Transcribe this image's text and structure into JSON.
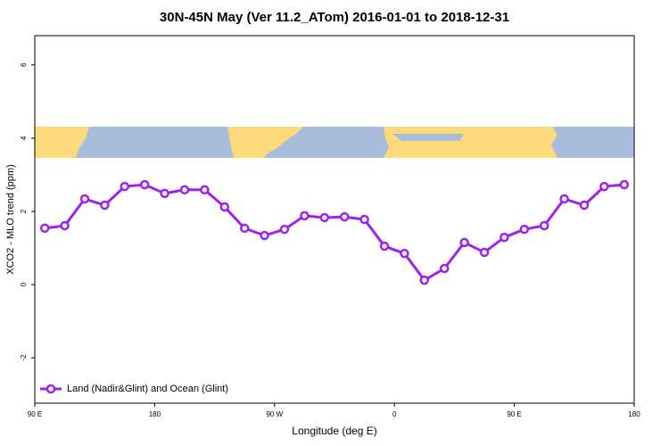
{
  "chart_data": {
    "type": "line",
    "title": "30N-45N May (Ver 11.2_ATom)   2016-01-01 to 2018-12-31",
    "x_label": "Longitude (deg E)",
    "y_label": "XCO2 - MLO trend (ppm)",
    "x": [
      97.5,
      112.5,
      127.5,
      142.5,
      157.5,
      172.5,
      187.5,
      202.5,
      217.5,
      232.5,
      247.5,
      262.5,
      277.5,
      292.5,
      307.5,
      322.5,
      337.5,
      352.5,
      367.5,
      382.5,
      397.5,
      412.5,
      427.5,
      442.5,
      457.5,
      472.5,
      487.5,
      502.5,
      517.5,
      532.5
    ],
    "series": [
      {
        "name": "Land (Nadir&Glint) and Ocean (Glint)",
        "color": "#a020f0",
        "values": [
          1.54,
          1.61,
          2.34,
          2.17,
          2.68,
          2.73,
          2.49,
          2.59,
          2.59,
          2.12,
          1.54,
          1.34,
          1.51,
          1.88,
          1.83,
          1.85,
          1.78,
          1.05,
          0.85,
          0.12,
          0.44,
          1.15,
          0.88,
          1.29,
          1.51,
          1.61,
          2.34,
          2.17,
          2.68,
          2.73
        ]
      }
    ],
    "xlim": [
      90,
      540
    ],
    "xticks": [
      {
        "value": 90,
        "label": "90 E"
      },
      {
        "value": 180,
        "label": "180"
      },
      {
        "value": 270,
        "label": "90 W"
      },
      {
        "value": 360,
        "label": "0"
      },
      {
        "value": 450,
        "label": "90 E"
      },
      {
        "value": 540,
        "label": "180"
      }
    ],
    "ylim": [
      -3.24,
      6.8
    ],
    "yticks": [
      -2,
      0,
      2,
      4,
      6
    ],
    "legend": "bottom-left"
  }
}
